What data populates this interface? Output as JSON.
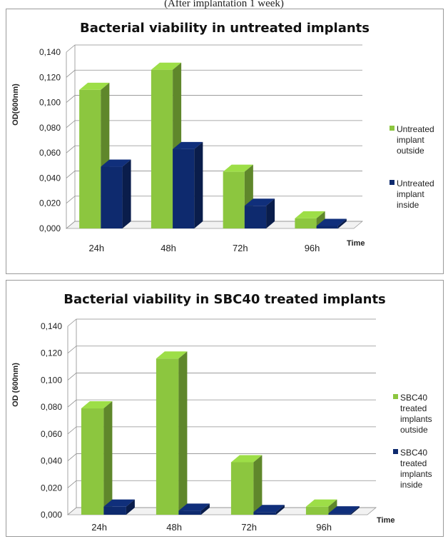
{
  "top_caption": "(After implantation 1 week)",
  "chart_data": [
    {
      "type": "bar",
      "title": "Bacterial viability in untreated implants",
      "xlabel": "Time",
      "ylabel": "OD(600nm)",
      "ylim": [
        0,
        0.14
      ],
      "yticks": [
        "0,000",
        "0,020",
        "0,040",
        "0,060",
        "0,080",
        "0,100",
        "0,120",
        "0,140"
      ],
      "categories": [
        "24h",
        "48h",
        "72h",
        "96h"
      ],
      "series": [
        {
          "name": "Untreated implant outside",
          "values": [
            0.11,
            0.126,
            0.045,
            0.008
          ],
          "color": "#8cc63f"
        },
        {
          "name": "Untreated implant inside",
          "values": [
            0.049,
            0.063,
            0.018,
            0.002
          ],
          "color": "#0e2a6e"
        }
      ],
      "legend_position": "right",
      "grid": true
    },
    {
      "type": "bar",
      "title": "Bacterial viability in SBC40 treated implants",
      "xlabel": "Time",
      "ylabel": "OD (600nm)",
      "ylim": [
        0,
        0.14
      ],
      "yticks": [
        "0,000",
        "0,020",
        "0,040",
        "0,060",
        "0,080",
        "0,100",
        "0,120",
        "0,140"
      ],
      "categories": [
        "24h",
        "48h",
        "72h",
        "96h"
      ],
      "series": [
        {
          "name": "SBC40 treated implants outside",
          "values": [
            0.079,
            0.116,
            0.039,
            0.006
          ],
          "color": "#8cc63f"
        },
        {
          "name": "SBC40 treated implants inside",
          "values": [
            0.006,
            0.003,
            0.002,
            0.001
          ],
          "color": "#0e2a6e"
        }
      ],
      "legend_position": "right",
      "grid": true
    }
  ]
}
